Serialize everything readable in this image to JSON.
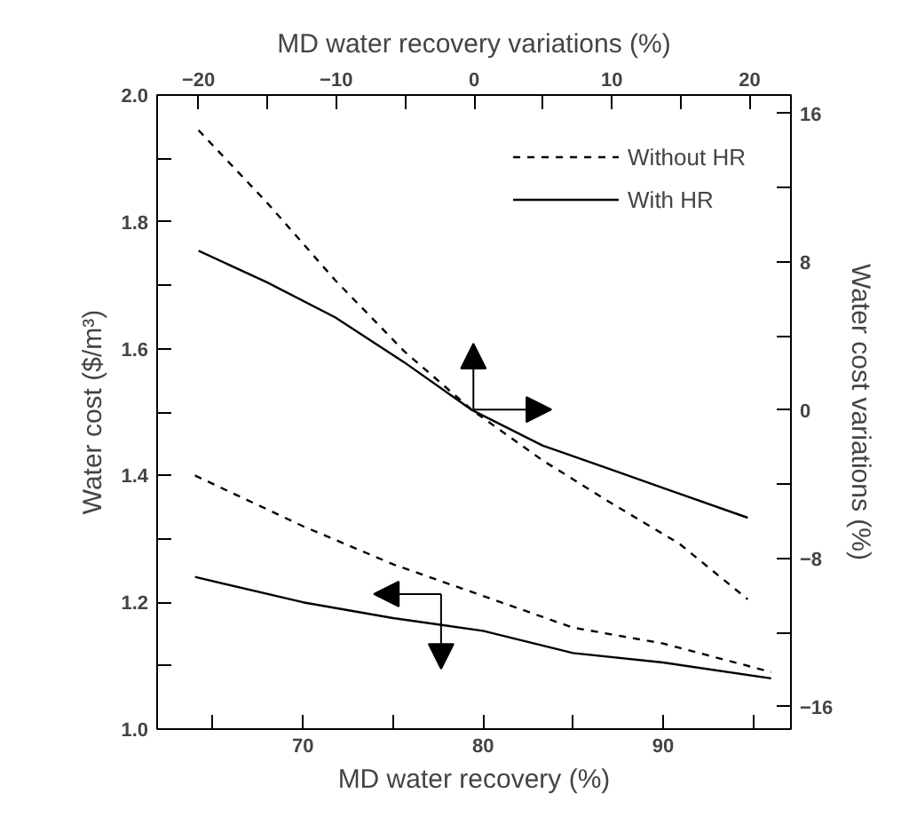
{
  "chart_data": {
    "type": "line",
    "xlabel": "MD water recovery (%)",
    "ylabel": "Water cost ($/m³)",
    "x2label": "MD water recovery variations (%)",
    "y2label": "Water cost variations (%)",
    "xlim": [
      61.9,
      97.1
    ],
    "ylim": [
      1.0,
      2.0
    ],
    "x2lim": [
      -23,
      23
    ],
    "y2lim": [
      -17.2,
      17.0
    ],
    "xticks": [
      {
        "value": 65,
        "label": null
      },
      70,
      {
        "value": 75,
        "label": null
      },
      80,
      {
        "value": 85,
        "label": null
      },
      90,
      {
        "value": 95,
        "label": null
      }
    ],
    "x2ticks": [
      -20,
      {
        "value": -15,
        "label": null
      },
      -10,
      {
        "value": -5,
        "label": null
      },
      0,
      {
        "value": 5,
        "label": null
      },
      10,
      {
        "value": 15,
        "label": null
      },
      20
    ],
    "yticks": [
      {
        "value": 1.0,
        "label": "1.0"
      },
      {
        "value": 1.1,
        "label": null
      },
      1.2,
      {
        "value": 1.3,
        "label": null
      },
      1.4,
      {
        "value": 1.5,
        "label": null
      },
      1.6,
      {
        "value": 1.7,
        "label": null
      },
      1.8,
      {
        "value": 1.9,
        "label": null
      },
      {
        "value": 2.0,
        "label": "2.0"
      }
    ],
    "y2ticks": [
      -16,
      {
        "value": -12,
        "label": null
      },
      -8,
      {
        "value": -4,
        "label": null
      },
      0,
      {
        "value": 4,
        "label": null
      },
      8,
      {
        "value": 12,
        "label": null
      },
      16
    ],
    "grid": false,
    "legend": "top right",
    "marker": "none",
    "series": [
      {
        "name": "Without HR",
        "color": "#000000",
        "line_style": "dashed",
        "axis": "y2",
        "x": [
          64.2,
          68.0,
          71.8,
          75.6,
          79.4,
          83.3,
          87.1,
          90.9,
          94.7
        ],
        "values": [
          15.1,
          11.2,
          7.0,
          3.2,
          0,
          -2.7,
          -5.0,
          -7.2,
          -10.2
        ]
      },
      {
        "name": "With HR",
        "color": "#000000",
        "line_style": "solid",
        "axis": "y2",
        "x": [
          64.2,
          68.0,
          71.8,
          75.6,
          79.4,
          83.3,
          87.1,
          90.9,
          94.7
        ],
        "values": [
          8.6,
          6.9,
          5.0,
          2.6,
          0,
          -1.9,
          -3.2,
          -4.5,
          -5.8
        ]
      },
      {
        "color": "#000000",
        "line_style": "dashed",
        "x": [
          64,
          70,
          75,
          80,
          85,
          90,
          96
        ],
        "values": [
          1.4,
          1.32,
          1.26,
          1.21,
          1.16,
          1.135,
          1.09
        ]
      },
      {
        "color": "#000000",
        "line_style": "solid",
        "x": [
          64,
          70,
          75,
          80,
          85,
          90,
          96
        ],
        "values": [
          1.24,
          1.2,
          1.175,
          1.155,
          1.12,
          1.105,
          1.08
        ]
      }
    ]
  }
}
